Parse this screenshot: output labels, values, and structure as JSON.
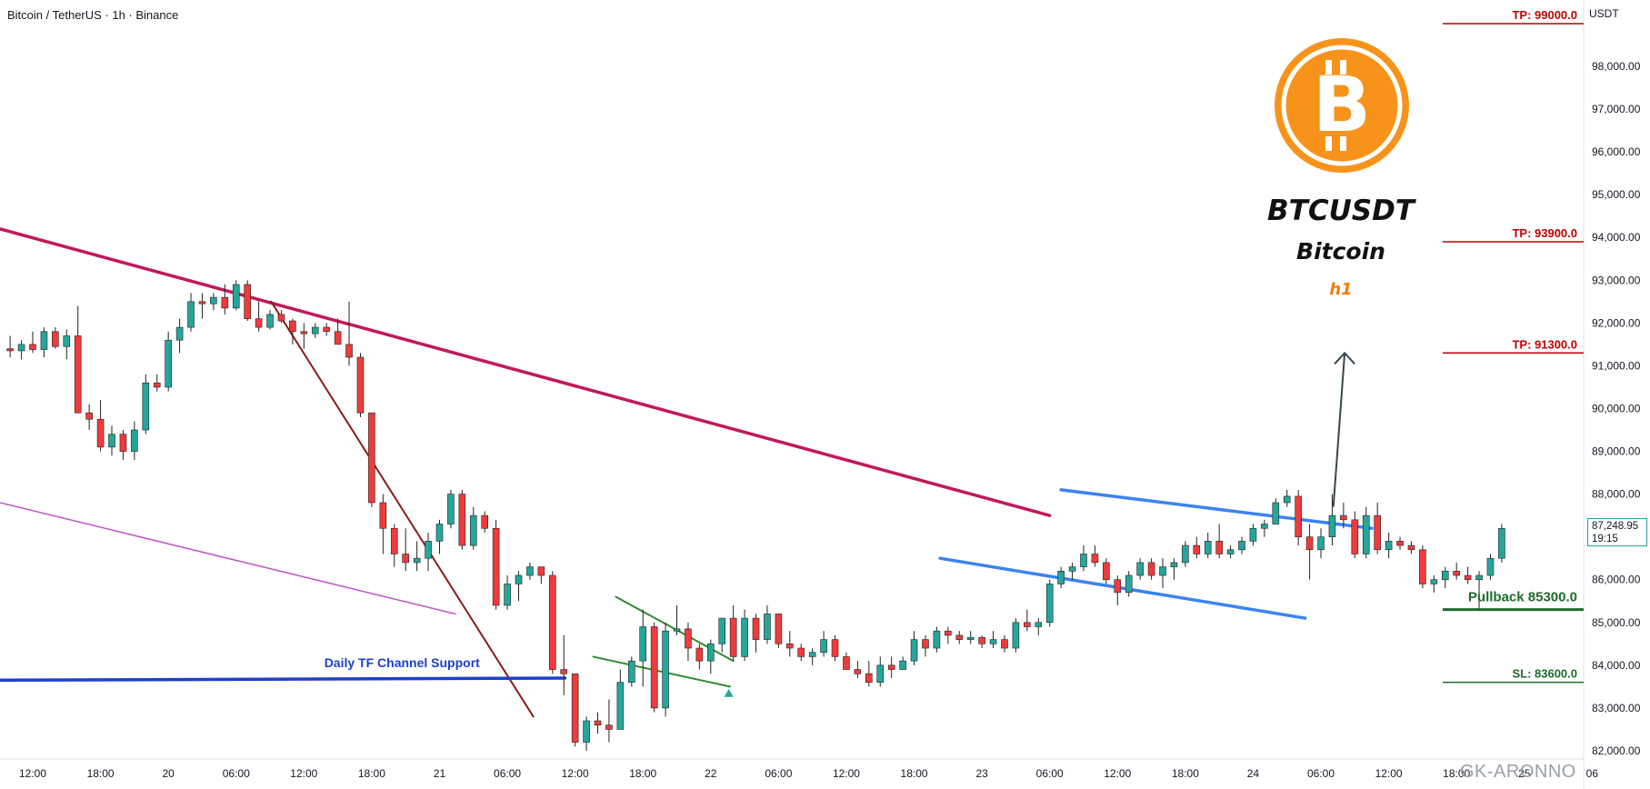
{
  "header": {
    "symbol_line": "Bitcoin / TetherUS · 1h · Binance"
  },
  "branding": {
    "pair": "BTCUSDT",
    "name": "Bitcoin",
    "timeframe": "h1",
    "logo_icon": "bitcoin-logo-icon"
  },
  "axis": {
    "currency": "USDT",
    "current_price": "87,248.95",
    "countdown": "19:15"
  },
  "watermark": "GK-ARONNO",
  "colors": {
    "up": "#26a69a",
    "down": "#ef3b3b",
    "downtrend": "#c2185b",
    "steep_trend": "#8b1a1a",
    "channel_support": "#1e40c8",
    "parallel_line": "#c054c8",
    "wedge": "#2e8b2e",
    "channel": "#3b82f6",
    "tp": "#c00000",
    "sl": "#1e6b2a",
    "pullback": "#1e6b2a"
  },
  "chart_data": {
    "type": "candlestick",
    "title": "Bitcoin / TetherUS · 1h · Binance",
    "y_axis": {
      "ylim": [
        81800,
        100200
      ],
      "ticks": [
        82000,
        83000,
        84000,
        85000,
        86000,
        87000,
        88000,
        89000,
        90000,
        91000,
        92000,
        93000,
        94000,
        95000,
        96000,
        97000,
        98000
      ],
      "tick_labels": [
        "82,000.00",
        "83,000.00",
        "84,000.00",
        "85,000.00",
        "86,000.00",
        "87,000.00",
        "88,000.00",
        "89,000.00",
        "90,000.00",
        "91,000.00",
        "92,000.00",
        "93,000.00",
        "94,000.00",
        "95,000.00",
        "96,000.00",
        "97,000.00",
        "98,000.00"
      ]
    },
    "x_axis": {
      "start": "2024-11-19 12:00",
      "bar_interval_hours": 1,
      "ticks": [
        {
          "hour": 0,
          "label": "12:00"
        },
        {
          "hour": 6,
          "label": "18:00"
        },
        {
          "hour": 12,
          "label": "20"
        },
        {
          "hour": 18,
          "label": "06:00"
        },
        {
          "hour": 24,
          "label": "12:00"
        },
        {
          "hour": 30,
          "label": "18:00"
        },
        {
          "hour": 36,
          "label": "21"
        },
        {
          "hour": 42,
          "label": "06:00"
        },
        {
          "hour": 48,
          "label": "12:00"
        },
        {
          "hour": 54,
          "label": "18:00"
        },
        {
          "hour": 60,
          "label": "22"
        },
        {
          "hour": 66,
          "label": "06:00"
        },
        {
          "hour": 72,
          "label": "12:00"
        },
        {
          "hour": 78,
          "label": "18:00"
        },
        {
          "hour": 84,
          "label": "23"
        },
        {
          "hour": 90,
          "label": "06:00"
        },
        {
          "hour": 96,
          "label": "12:00"
        },
        {
          "hour": 102,
          "label": "18:00"
        },
        {
          "hour": 108,
          "label": "24"
        },
        {
          "hour": 114,
          "label": "06:00"
        },
        {
          "hour": 120,
          "label": "12:00"
        },
        {
          "hour": 126,
          "label": "18:00"
        },
        {
          "hour": 132,
          "label": "25"
        },
        {
          "hour": 138,
          "label": "06"
        }
      ]
    },
    "candles": [
      {
        "o": 91400,
        "h": 91700,
        "l": 91200,
        "c": 91350
      },
      {
        "o": 91350,
        "h": 91600,
        "l": 91150,
        "c": 91500
      },
      {
        "o": 91500,
        "h": 91800,
        "l": 91300,
        "c": 91380
      },
      {
        "o": 91380,
        "h": 91900,
        "l": 91200,
        "c": 91800
      },
      {
        "o": 91800,
        "h": 91900,
        "l": 91400,
        "c": 91450
      },
      {
        "o": 91450,
        "h": 91850,
        "l": 91150,
        "c": 91700
      },
      {
        "o": 91700,
        "h": 92400,
        "l": 89900,
        "c": 89900
      },
      {
        "o": 89900,
        "h": 90100,
        "l": 89500,
        "c": 89750
      },
      {
        "o": 89750,
        "h": 90200,
        "l": 89000,
        "c": 89100
      },
      {
        "o": 89100,
        "h": 89600,
        "l": 88900,
        "c": 89400
      },
      {
        "o": 89400,
        "h": 89500,
        "l": 88800,
        "c": 89000
      },
      {
        "o": 89000,
        "h": 89700,
        "l": 88800,
        "c": 89500
      },
      {
        "o": 89500,
        "h": 90800,
        "l": 89400,
        "c": 90600
      },
      {
        "o": 90600,
        "h": 90800,
        "l": 90400,
        "c": 90500
      },
      {
        "o": 90500,
        "h": 91800,
        "l": 90400,
        "c": 91600
      },
      {
        "o": 91600,
        "h": 92100,
        "l": 91300,
        "c": 91900
      },
      {
        "o": 91900,
        "h": 92700,
        "l": 91800,
        "c": 92500
      },
      {
        "o": 92500,
        "h": 92700,
        "l": 92100,
        "c": 92450
      },
      {
        "o": 92450,
        "h": 92700,
        "l": 92300,
        "c": 92600
      },
      {
        "o": 92600,
        "h": 92900,
        "l": 92200,
        "c": 92350
      },
      {
        "o": 92350,
        "h": 93000,
        "l": 92300,
        "c": 92900
      },
      {
        "o": 92900,
        "h": 93000,
        "l": 92050,
        "c": 92100
      },
      {
        "o": 92100,
        "h": 92500,
        "l": 91800,
        "c": 91900
      },
      {
        "o": 91900,
        "h": 92300,
        "l": 91850,
        "c": 92200
      },
      {
        "o": 92200,
        "h": 92300,
        "l": 92000,
        "c": 92050
      },
      {
        "o": 92050,
        "h": 92100,
        "l": 91500,
        "c": 91800
      },
      {
        "o": 91800,
        "h": 92000,
        "l": 91400,
        "c": 91750
      },
      {
        "o": 91750,
        "h": 92000,
        "l": 91650,
        "c": 91900
      },
      {
        "o": 91900,
        "h": 92000,
        "l": 91700,
        "c": 91800
      },
      {
        "o": 91800,
        "h": 92100,
        "l": 91600,
        "c": 91500
      },
      {
        "o": 91500,
        "h": 92500,
        "l": 91000,
        "c": 91200
      },
      {
        "o": 91200,
        "h": 91300,
        "l": 89800,
        "c": 89900
      },
      {
        "o": 89900,
        "h": 89900,
        "l": 87700,
        "c": 87800
      },
      {
        "o": 87800,
        "h": 88000,
        "l": 86600,
        "c": 87200
      },
      {
        "o": 87200,
        "h": 87300,
        "l": 86300,
        "c": 86600
      },
      {
        "o": 86600,
        "h": 87200,
        "l": 86200,
        "c": 86400
      },
      {
        "o": 86400,
        "h": 86900,
        "l": 86200,
        "c": 86500
      },
      {
        "o": 86500,
        "h": 87100,
        "l": 86200,
        "c": 86900
      },
      {
        "o": 86900,
        "h": 87400,
        "l": 86600,
        "c": 87300
      },
      {
        "o": 87300,
        "h": 88100,
        "l": 87200,
        "c": 88000
      },
      {
        "o": 88000,
        "h": 88100,
        "l": 86700,
        "c": 86800
      },
      {
        "o": 86800,
        "h": 87700,
        "l": 86700,
        "c": 87500
      },
      {
        "o": 87500,
        "h": 87600,
        "l": 87100,
        "c": 87200
      },
      {
        "o": 87200,
        "h": 87400,
        "l": 85300,
        "c": 85400
      },
      {
        "o": 85400,
        "h": 86100,
        "l": 85300,
        "c": 85900
      },
      {
        "o": 85900,
        "h": 86200,
        "l": 85500,
        "c": 86100
      },
      {
        "o": 86100,
        "h": 86400,
        "l": 86000,
        "c": 86300
      },
      {
        "o": 86300,
        "h": 86300,
        "l": 85900,
        "c": 86100
      },
      {
        "o": 86100,
        "h": 86200,
        "l": 83800,
        "c": 83900
      },
      {
        "o": 83900,
        "h": 84700,
        "l": 83300,
        "c": 83800
      },
      {
        "o": 83800,
        "h": 83800,
        "l": 82100,
        "c": 82200
      },
      {
        "o": 82200,
        "h": 82800,
        "l": 82000,
        "c": 82700
      },
      {
        "o": 82700,
        "h": 82900,
        "l": 82400,
        "c": 82600
      },
      {
        "o": 82600,
        "h": 83200,
        "l": 82200,
        "c": 82500
      },
      {
        "o": 82500,
        "h": 83900,
        "l": 82500,
        "c": 83600
      },
      {
        "o": 83600,
        "h": 84200,
        "l": 83500,
        "c": 84100
      },
      {
        "o": 84100,
        "h": 85300,
        "l": 83500,
        "c": 84900
      },
      {
        "o": 84900,
        "h": 85000,
        "l": 82900,
        "c": 83000
      },
      {
        "o": 83000,
        "h": 85000,
        "l": 82800,
        "c": 84800
      },
      {
        "o": 84800,
        "h": 85400,
        "l": 84700,
        "c": 84850
      },
      {
        "o": 84850,
        "h": 85000,
        "l": 84100,
        "c": 84400
      },
      {
        "o": 84400,
        "h": 84500,
        "l": 83900,
        "c": 84100
      },
      {
        "o": 84100,
        "h": 84600,
        "l": 83800,
        "c": 84500
      },
      {
        "o": 84500,
        "h": 85000,
        "l": 84300,
        "c": 85100
      },
      {
        "o": 85100,
        "h": 85400,
        "l": 84100,
        "c": 84200
      },
      {
        "o": 84200,
        "h": 85300,
        "l": 84100,
        "c": 85100
      },
      {
        "o": 85100,
        "h": 85200,
        "l": 84300,
        "c": 84600
      },
      {
        "o": 84600,
        "h": 85400,
        "l": 84500,
        "c": 85200
      },
      {
        "o": 85200,
        "h": 85200,
        "l": 84400,
        "c": 84500
      },
      {
        "o": 84500,
        "h": 84800,
        "l": 84200,
        "c": 84400
      },
      {
        "o": 84400,
        "h": 84500,
        "l": 84100,
        "c": 84200
      },
      {
        "o": 84200,
        "h": 84400,
        "l": 84000,
        "c": 84300
      },
      {
        "o": 84300,
        "h": 84800,
        "l": 84200,
        "c": 84600
      },
      {
        "o": 84600,
        "h": 84700,
        "l": 84100,
        "c": 84200
      },
      {
        "o": 84200,
        "h": 84300,
        "l": 83900,
        "c": 83900
      },
      {
        "o": 83900,
        "h": 84100,
        "l": 83700,
        "c": 83800
      },
      {
        "o": 83800,
        "h": 84100,
        "l": 83500,
        "c": 83600
      },
      {
        "o": 83600,
        "h": 84200,
        "l": 83500,
        "c": 84000
      },
      {
        "o": 84000,
        "h": 84200,
        "l": 83700,
        "c": 83900
      },
      {
        "o": 83900,
        "h": 84200,
        "l": 83900,
        "c": 84100
      },
      {
        "o": 84100,
        "h": 84800,
        "l": 84000,
        "c": 84600
      },
      {
        "o": 84600,
        "h": 84700,
        "l": 84200,
        "c": 84400
      },
      {
        "o": 84400,
        "h": 84900,
        "l": 84300,
        "c": 84800
      },
      {
        "o": 84800,
        "h": 84900,
        "l": 84500,
        "c": 84700
      },
      {
        "o": 84700,
        "h": 84800,
        "l": 84500,
        "c": 84600
      },
      {
        "o": 84600,
        "h": 84800,
        "l": 84500,
        "c": 84650
      },
      {
        "o": 84650,
        "h": 84700,
        "l": 84400,
        "c": 84500
      },
      {
        "o": 84500,
        "h": 84800,
        "l": 84400,
        "c": 84600
      },
      {
        "o": 84600,
        "h": 84700,
        "l": 84300,
        "c": 84400
      },
      {
        "o": 84400,
        "h": 85100,
        "l": 84300,
        "c": 85000
      },
      {
        "o": 85000,
        "h": 85300,
        "l": 84800,
        "c": 84900
      },
      {
        "o": 84900,
        "h": 85100,
        "l": 84700,
        "c": 85000
      },
      {
        "o": 85000,
        "h": 86000,
        "l": 84900,
        "c": 85900
      },
      {
        "o": 85900,
        "h": 86300,
        "l": 85800,
        "c": 86200
      },
      {
        "o": 86200,
        "h": 86400,
        "l": 86000,
        "c": 86300
      },
      {
        "o": 86300,
        "h": 86800,
        "l": 86200,
        "c": 86600
      },
      {
        "o": 86600,
        "h": 86800,
        "l": 86300,
        "c": 86400
      },
      {
        "o": 86400,
        "h": 86500,
        "l": 85900,
        "c": 86000
      },
      {
        "o": 86000,
        "h": 86100,
        "l": 85400,
        "c": 85700
      },
      {
        "o": 85700,
        "h": 86200,
        "l": 85600,
        "c": 86100
      },
      {
        "o": 86100,
        "h": 86500,
        "l": 86000,
        "c": 86400
      },
      {
        "o": 86400,
        "h": 86500,
        "l": 86000,
        "c": 86100
      },
      {
        "o": 86100,
        "h": 86500,
        "l": 85800,
        "c": 86300
      },
      {
        "o": 86300,
        "h": 86500,
        "l": 86000,
        "c": 86400
      },
      {
        "o": 86400,
        "h": 86900,
        "l": 86300,
        "c": 86800
      },
      {
        "o": 86800,
        "h": 87000,
        "l": 86500,
        "c": 86600
      },
      {
        "o": 86600,
        "h": 87100,
        "l": 86500,
        "c": 86900
      },
      {
        "o": 86900,
        "h": 87300,
        "l": 86500,
        "c": 86600
      },
      {
        "o": 86600,
        "h": 86800,
        "l": 86500,
        "c": 86700
      },
      {
        "o": 86700,
        "h": 87000,
        "l": 86600,
        "c": 86900
      },
      {
        "o": 86900,
        "h": 87300,
        "l": 86800,
        "c": 87200
      },
      {
        "o": 87200,
        "h": 87400,
        "l": 87000,
        "c": 87300
      },
      {
        "o": 87300,
        "h": 87900,
        "l": 87300,
        "c": 87800
      },
      {
        "o": 87800,
        "h": 88100,
        "l": 87700,
        "c": 87950
      },
      {
        "o": 87950,
        "h": 88100,
        "l": 86800,
        "c": 87000
      },
      {
        "o": 87000,
        "h": 87300,
        "l": 86000,
        "c": 86700
      },
      {
        "o": 86700,
        "h": 87200,
        "l": 86500,
        "c": 87000
      },
      {
        "o": 87000,
        "h": 88000,
        "l": 86800,
        "c": 87500
      },
      {
        "o": 87500,
        "h": 87800,
        "l": 87200,
        "c": 87400
      },
      {
        "o": 87400,
        "h": 87600,
        "l": 86500,
        "c": 86600
      },
      {
        "o": 86600,
        "h": 87700,
        "l": 86500,
        "c": 87500
      },
      {
        "o": 87500,
        "h": 87800,
        "l": 86600,
        "c": 86700
      },
      {
        "o": 86700,
        "h": 87100,
        "l": 86500,
        "c": 86900
      },
      {
        "o": 86900,
        "h": 87000,
        "l": 86700,
        "c": 86800
      },
      {
        "o": 86800,
        "h": 86900,
        "l": 86600,
        "c": 86700
      },
      {
        "o": 86700,
        "h": 86800,
        "l": 85800,
        "c": 85900
      },
      {
        "o": 85900,
        "h": 86100,
        "l": 85700,
        "c": 86000
      },
      {
        "o": 86000,
        "h": 86300,
        "l": 85800,
        "c": 86200
      },
      {
        "o": 86200,
        "h": 86400,
        "l": 86000,
        "c": 86100
      },
      {
        "o": 86100,
        "h": 86300,
        "l": 85900,
        "c": 86000
      },
      {
        "o": 86000,
        "h": 86200,
        "l": 85300,
        "c": 86100
      },
      {
        "o": 86100,
        "h": 86600,
        "l": 86000,
        "c": 86500
      },
      {
        "o": 86500,
        "h": 87300,
        "l": 86400,
        "c": 87200
      }
    ],
    "levels": [
      {
        "label": "TP: 99000.0",
        "price": 99000,
        "kind": "tp"
      },
      {
        "label": "TP: 93900.0",
        "price": 93900,
        "kind": "tp"
      },
      {
        "label": "TP: 91300.0",
        "price": 91300,
        "kind": "tp"
      },
      {
        "label": "Pullback 85300.0",
        "price": 85300,
        "kind": "pullback"
      },
      {
        "label": "SL: 83600.0",
        "price": 83600,
        "kind": "sl"
      }
    ],
    "annotations": {
      "channel_support_label": "Daily TF Channel Support"
    }
  }
}
